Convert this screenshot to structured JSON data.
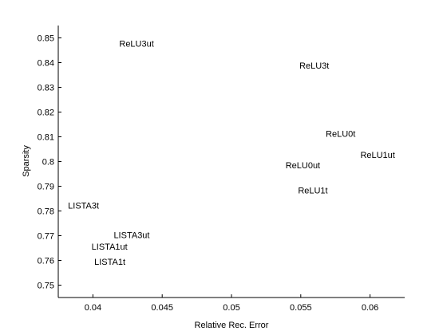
{
  "chart_data": {
    "type": "scatter",
    "title": "",
    "xlabel": "Relative Rec. Error",
    "ylabel": "Sparsity",
    "xlim": [
      0.0375,
      0.0625
    ],
    "ylim": [
      0.745,
      0.855
    ],
    "xticks": [
      0.04,
      0.045,
      0.05,
      0.055,
      0.06
    ],
    "xtick_labels": [
      "0.04",
      "0.045",
      "0.05",
      "0.055",
      "0.06"
    ],
    "yticks": [
      0.75,
      0.76,
      0.77,
      0.78,
      0.79,
      0.8,
      0.81,
      0.82,
      0.83,
      0.84,
      0.85
    ],
    "ytick_labels": [
      "0.75",
      "0.76",
      "0.77",
      "0.78",
      "0.79",
      "0.8",
      "0.81",
      "0.82",
      "0.83",
      "0.84",
      "0.85"
    ],
    "grid": false,
    "legend": "none",
    "points": [
      {
        "label": "ReLU3ut",
        "x": 0.0419,
        "y": 0.8478
      },
      {
        "label": "ReLU3t",
        "x": 0.0549,
        "y": 0.8389
      },
      {
        "label": "ReLU0t",
        "x": 0.0568,
        "y": 0.8113
      },
      {
        "label": "ReLU1ut",
        "x": 0.0593,
        "y": 0.8028
      },
      {
        "label": "ReLU0ut",
        "x": 0.0539,
        "y": 0.7986
      },
      {
        "label": "ReLU1t",
        "x": 0.0548,
        "y": 0.7884
      },
      {
        "label": "LISTA3t",
        "x": 0.0382,
        "y": 0.7823
      },
      {
        "label": "LISTA3ut",
        "x": 0.0415,
        "y": 0.7704
      },
      {
        "label": "LISTA1ut",
        "x": 0.0399,
        "y": 0.7656
      },
      {
        "label": "LISTA1t",
        "x": 0.0401,
        "y": 0.7595
      }
    ]
  }
}
